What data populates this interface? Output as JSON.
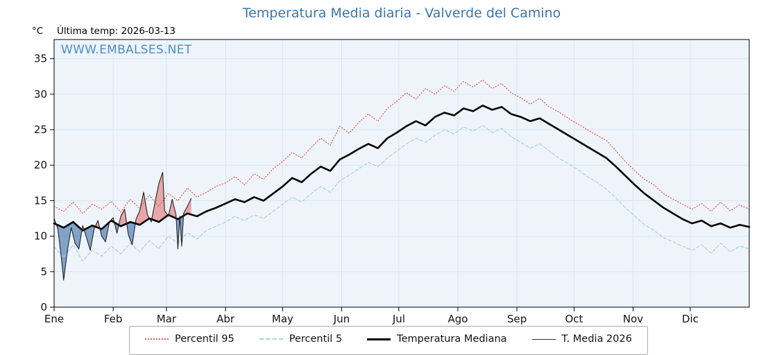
{
  "header": {
    "units_label": "°C",
    "last_temp_label": "Última temp: 2026-03-13",
    "watermark": "WWW.EMBALSES.NET"
  },
  "chart_data": {
    "type": "line",
    "title": "Temperatura Media diaria - Valverde del Camino",
    "title_color": "#3a76ad",
    "xlabel": "",
    "ylabel": "°C",
    "ylim": [
      0,
      37.7
    ],
    "x_days_range": [
      0,
      365
    ],
    "yticks": [
      0,
      5,
      10,
      15,
      20,
      25,
      30,
      35
    ],
    "xtick_labels": [
      "Ene",
      "Feb",
      "Mar",
      "Abr",
      "May",
      "Jun",
      "Jul",
      "Ago",
      "Sep",
      "Oct",
      "Nov",
      "Dic"
    ],
    "month_start_days": [
      0,
      31,
      59,
      90,
      120,
      151,
      181,
      212,
      243,
      273,
      304,
      334
    ],
    "grid": true,
    "plot_bg": "#eef4fa",
    "grid_color": "#dae4ee",
    "legend_position": "bottom-center",
    "fills": {
      "above_median_color": "rgba(226,88,88,0.5)",
      "below_median_color": "rgba(70,118,175,0.65)"
    },
    "series": [
      {
        "name": "Percentil 95",
        "color": "#e05252",
        "style": "dotted",
        "width": 1.1,
        "x_start": 0,
        "x_step": 5,
        "values": [
          14.2,
          13.5,
          14.8,
          13.2,
          14.5,
          13.8,
          14.9,
          13.4,
          15.2,
          13.9,
          15.8,
          14.2,
          16.0,
          15.0,
          16.8,
          15.5,
          16.2,
          17.0,
          17.5,
          18.4,
          17.2,
          18.8,
          18.0,
          19.5,
          20.5,
          21.8,
          21.0,
          22.5,
          23.8,
          22.8,
          25.5,
          24.5,
          26.0,
          27.2,
          26.2,
          28.0,
          29.0,
          30.2,
          29.3,
          30.8,
          30.0,
          31.2,
          30.4,
          31.8,
          31.0,
          32.0,
          30.8,
          31.5,
          30.2,
          29.5,
          28.6,
          29.4,
          28.2,
          27.5,
          26.6,
          25.8,
          25.0,
          24.2,
          23.5,
          22.0,
          20.5,
          19.2,
          18.0,
          17.2,
          16.0,
          15.2,
          14.5,
          13.8,
          14.6,
          13.5,
          14.8,
          13.6,
          14.4,
          13.8
        ]
      },
      {
        "name": "Percentil 5",
        "color": "#a8cfe0",
        "style": "dashed",
        "width": 1.2,
        "x_start": 0,
        "x_step": 5,
        "values": [
          8.5,
          7.0,
          8.8,
          6.5,
          8.0,
          7.2,
          8.6,
          7.5,
          9.0,
          7.8,
          9.4,
          8.2,
          10.0,
          9.0,
          10.5,
          9.6,
          10.8,
          11.4,
          12.0,
          12.8,
          12.2,
          13.0,
          12.5,
          13.5,
          14.5,
          15.5,
          14.8,
          16.0,
          17.0,
          16.2,
          17.8,
          18.6,
          19.5,
          20.4,
          19.8,
          21.0,
          22.0,
          23.0,
          23.8,
          23.2,
          24.2,
          25.0,
          24.4,
          25.4,
          24.8,
          25.6,
          24.6,
          25.2,
          24.0,
          23.2,
          22.4,
          23.0,
          22.0,
          21.0,
          20.2,
          19.4,
          18.4,
          17.6,
          16.6,
          15.4,
          14.0,
          12.8,
          11.6,
          10.8,
          9.8,
          9.2,
          8.6,
          8.0,
          8.8,
          7.6,
          9.0,
          7.8,
          8.6,
          8.2
        ]
      },
      {
        "name": "Temperatura Mediana",
        "color": "#000000",
        "style": "solid",
        "width": 2.6,
        "x_start": 0,
        "x_step": 5,
        "values": [
          11.8,
          11.2,
          12.0,
          10.8,
          11.5,
          11.0,
          12.2,
          11.4,
          12.0,
          11.6,
          12.5,
          12.0,
          13.0,
          12.4,
          13.2,
          12.8,
          13.5,
          14.0,
          14.6,
          15.2,
          14.8,
          15.5,
          15.0,
          16.0,
          17.0,
          18.2,
          17.6,
          18.8,
          19.8,
          19.2,
          20.8,
          21.5,
          22.3,
          23.0,
          22.4,
          23.8,
          24.6,
          25.5,
          26.2,
          25.6,
          26.8,
          27.4,
          27.0,
          28.0,
          27.6,
          28.4,
          27.8,
          28.2,
          27.2,
          26.8,
          26.2,
          26.6,
          25.8,
          25.0,
          24.2,
          23.4,
          22.6,
          21.8,
          21.0,
          19.8,
          18.5,
          17.2,
          16.0,
          15.0,
          14.0,
          13.2,
          12.4,
          11.8,
          12.2,
          11.4,
          11.8,
          11.2,
          11.6,
          11.3
        ]
      },
      {
        "name": "T. Media 2026",
        "color": "#222222",
        "style": "solid",
        "width": 1.1,
        "x": [
          0,
          2,
          4,
          5,
          7,
          9,
          11,
          13,
          15,
          17,
          19,
          21,
          23,
          25,
          27,
          29,
          31,
          33,
          35,
          37,
          39,
          41,
          43,
          45,
          47,
          49,
          51,
          53,
          55,
          57,
          58,
          60,
          62,
          64,
          65,
          66,
          67,
          68,
          70,
          72
        ],
        "values": [
          12.5,
          11.0,
          6.5,
          3.8,
          8.0,
          11.2,
          9.0,
          8.2,
          11.5,
          9.8,
          8.0,
          11.0,
          12.2,
          10.0,
          9.2,
          12.0,
          12.6,
          10.4,
          12.8,
          13.8,
          10.2,
          8.8,
          12.4,
          13.6,
          16.2,
          13.0,
          12.0,
          14.8,
          17.4,
          19.0,
          13.6,
          12.8,
          15.2,
          13.0,
          8.2,
          12.8,
          8.6,
          13.2,
          14.2,
          15.3
        ]
      }
    ]
  }
}
